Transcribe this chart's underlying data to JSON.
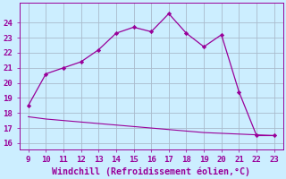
{
  "xlabel": "Windchill (Refroidissement éolien,°C)",
  "background_color": "#cceeff",
  "line_color": "#990099",
  "grid_color": "#aabbcc",
  "x_main": [
    9,
    10,
    11,
    12,
    13,
    14,
    15,
    16,
    17,
    18,
    19,
    20,
    21,
    22,
    23
  ],
  "y_main": [
    18.5,
    20.6,
    21.0,
    21.4,
    22.2,
    23.3,
    23.7,
    23.4,
    24.6,
    23.3,
    22.4,
    23.2,
    19.4,
    16.5,
    16.5
  ],
  "x_flat": [
    9,
    10,
    11,
    12,
    13,
    14,
    15,
    16,
    17,
    18,
    19,
    20,
    21,
    22,
    23
  ],
  "y_flat": [
    17.75,
    17.6,
    17.5,
    17.4,
    17.3,
    17.2,
    17.1,
    17.0,
    16.9,
    16.8,
    16.7,
    16.65,
    16.6,
    16.55,
    16.5
  ],
  "ylim": [
    15.6,
    25.3
  ],
  "xlim": [
    8.5,
    23.5
  ],
  "yticks": [
    16,
    17,
    18,
    19,
    20,
    21,
    22,
    23,
    24
  ],
  "xticks": [
    9,
    10,
    11,
    12,
    13,
    14,
    15,
    16,
    17,
    18,
    19,
    20,
    21,
    22,
    23
  ],
  "tick_fontsize": 6.5,
  "label_fontsize": 7.2
}
